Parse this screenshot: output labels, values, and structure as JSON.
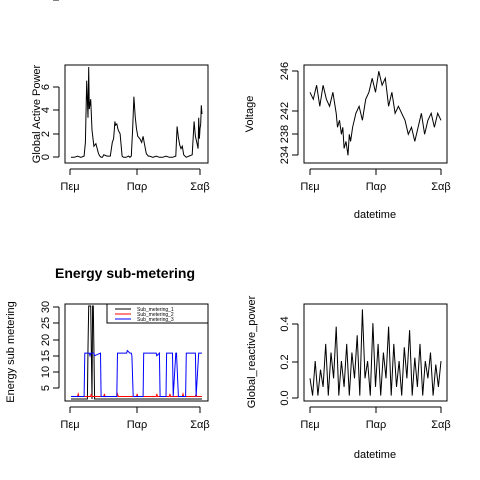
{
  "chart_data": [
    {
      "type": "line",
      "xlabel": "",
      "ylabel": "Global Active Power",
      "x_ticks": [
        "Πεμ",
        "Παρ",
        "Σαβ"
      ],
      "y_ticks": [
        "0",
        "2",
        "4",
        "6"
      ],
      "ylim": [
        0,
        7.6
      ],
      "series": [
        {
          "color": "#000000",
          "x": [
            0,
            0.05,
            0.1,
            0.15,
            0.2,
            0.22,
            0.24,
            0.26,
            0.27,
            0.28,
            0.3,
            0.32,
            0.35,
            0.38,
            0.4,
            0.42,
            0.44,
            0.46,
            0.48,
            0.5,
            0.55,
            0.6,
            0.63,
            0.65,
            0.66,
            0.67,
            0.68,
            0.7,
            0.72,
            0.75,
            0.78,
            0.8,
            0.84,
            0.88,
            0.9,
            0.92,
            0.94,
            0.96,
            0.98,
            1.0,
            1.02,
            1.05,
            1.08,
            1.1,
            1.12,
            1.15,
            1.18,
            1.2,
            1.25,
            1.3,
            1.35,
            1.4,
            1.45,
            1.5,
            1.55,
            1.6,
            1.62,
            1.64,
            1.66,
            1.68,
            1.7,
            1.72,
            1.74,
            1.76,
            1.8,
            1.85,
            1.88,
            1.9,
            1.92,
            1.94,
            1.95,
            1.96,
            1.97,
            1.98,
            1.99,
            2.0
          ],
          "y": [
            0.3,
            0.3,
            0.4,
            0.3,
            0.4,
            1.5,
            6.5,
            3.5,
            7.6,
            4.2,
            5.0,
            2.5,
            1.2,
            1.4,
            1.0,
            0.6,
            0.4,
            0.3,
            0.3,
            0.5,
            0.4,
            0.4,
            1.5,
            1.8,
            2.4,
            3.2,
            2.9,
            3.0,
            2.5,
            2.2,
            0.4,
            0.3,
            0.3,
            0.4,
            0.3,
            0.4,
            2.5,
            5.2,
            3.6,
            2.6,
            2.0,
            1.8,
            1.5,
            2.0,
            1.4,
            0.6,
            0.4,
            0.4,
            0.3,
            0.4,
            0.3,
            0.3,
            0.4,
            0.3,
            0.3,
            0.4,
            2.8,
            1.9,
            1.3,
            1.0,
            1.2,
            0.5,
            0.4,
            0.3,
            0.4,
            0.5,
            3.2,
            2.0,
            1.5,
            1.0,
            3.5,
            1.8,
            2.6,
            3.0,
            4.5,
            3.8
          ]
        }
      ]
    },
    {
      "type": "line",
      "xlabel": "datetime",
      "ylabel": "Voltage",
      "x_ticks": [
        "Πεμ",
        "Παρ",
        "Σαβ"
      ],
      "y_ticks": [
        "234",
        "238",
        "242",
        "246"
      ],
      "ylim": [
        233.2,
        246.6
      ],
      "series": [
        {
          "color": "#000000",
          "x": [
            0,
            0.05,
            0.1,
            0.15,
            0.2,
            0.25,
            0.3,
            0.35,
            0.4,
            0.42,
            0.45,
            0.48,
            0.5,
            0.52,
            0.55,
            0.58,
            0.6,
            0.62,
            0.65,
            0.7,
            0.75,
            0.8,
            0.85,
            0.9,
            0.95,
            1.0,
            1.05,
            1.1,
            1.15,
            1.2,
            1.25,
            1.3,
            1.35,
            1.4,
            1.45,
            1.5,
            1.55,
            1.6,
            1.65,
            1.7,
            1.75,
            1.8,
            1.85,
            1.9,
            1.95,
            2.0
          ],
          "y": [
            243,
            242,
            244,
            241,
            244,
            242,
            241,
            243,
            240,
            238,
            239,
            237,
            238,
            235,
            236,
            234,
            237,
            236,
            238,
            240,
            241,
            239,
            242,
            243,
            245,
            243,
            246,
            244,
            245,
            241,
            243,
            240,
            241,
            240,
            239,
            237,
            238,
            236,
            238,
            240,
            237,
            239,
            240,
            238,
            240,
            239
          ]
        }
      ]
    },
    {
      "type": "line",
      "title": "Energy sub-metering",
      "xlabel": "",
      "ylabel": "Energy sub metering",
      "x_ticks": [
        "Πεμ",
        "Παρ",
        "Σαβ"
      ],
      "y_ticks": [
        "5",
        "10",
        "15",
        "20",
        "25",
        "30",
        "35"
      ],
      "ylim": [
        0,
        36.5
      ],
      "legend": {
        "position": "top-right",
        "entries": [
          "Sub_metering_1",
          "Sub_metering_2",
          "Sub_metering_3"
        ]
      },
      "series": [
        {
          "name": "Sub_metering_1",
          "color": "#000000",
          "x": [
            0,
            0.25,
            0.26,
            0.27,
            0.3,
            0.32,
            0.33,
            0.34,
            0.36,
            0.38,
            0.5,
            1.0,
            1.5,
            2.0
          ],
          "y": [
            0,
            0,
            20,
            38,
            38,
            0,
            38,
            38,
            0,
            0,
            0,
            0,
            0,
            0
          ]
        },
        {
          "name": "Sub_metering_2",
          "color": "#ff0000",
          "x": [
            0,
            0.1,
            0.11,
            0.12,
            0.3,
            0.31,
            0.32,
            0.5,
            0.51,
            0.52,
            0.7,
            0.71,
            0.72,
            1.0,
            1.01,
            1.02,
            1.3,
            1.31,
            1.32,
            1.5,
            1.51,
            1.52,
            1.7,
            1.71,
            1.72,
            1.9,
            1.91,
            1.92,
            2.0
          ],
          "y": [
            1,
            1,
            2,
            1,
            1,
            2,
            1,
            1,
            2,
            1,
            1,
            2,
            1,
            1,
            2,
            1,
            1,
            2,
            1,
            1,
            2,
            1,
            1,
            2,
            1,
            1,
            2,
            1,
            1
          ]
        },
        {
          "name": "Sub_metering_3",
          "color": "#0000ff",
          "x": [
            0,
            0.2,
            0.21,
            0.28,
            0.29,
            0.3,
            0.31,
            0.35,
            0.36,
            0.45,
            0.46,
            0.7,
            0.71,
            0.85,
            0.86,
            0.9,
            0.92,
            0.93,
            0.95,
            1.1,
            1.11,
            1.3,
            1.31,
            1.35,
            1.36,
            1.45,
            1.46,
            1.55,
            1.56,
            1.6,
            1.61,
            1.64,
            1.65,
            1.75,
            1.76,
            1.9,
            1.91,
            1.95,
            1.96,
            2.0
          ],
          "y": [
            1,
            1,
            18,
            18,
            17,
            18,
            18,
            18,
            17,
            18,
            1,
            1,
            18,
            18,
            19,
            18,
            18,
            17,
            1,
            1,
            18,
            18,
            17,
            18,
            1,
            1,
            18,
            18,
            1,
            18,
            18,
            1,
            1,
            1,
            18,
            18,
            1,
            18,
            18,
            18
          ]
        }
      ]
    },
    {
      "type": "line",
      "xlabel": "datetime",
      "ylabel": "Global_reactive_power",
      "x_ticks": [
        "Πεμ",
        "Παρ",
        "Σαβ"
      ],
      "y_ticks": [
        "0.0",
        "0.2",
        "0.4"
      ],
      "ylim": [
        -0.02,
        0.52
      ],
      "series": [
        {
          "color": "#000000",
          "x": [
            0,
            0.04,
            0.08,
            0.12,
            0.16,
            0.2,
            0.24,
            0.28,
            0.32,
            0.36,
            0.4,
            0.44,
            0.48,
            0.52,
            0.56,
            0.6,
            0.64,
            0.68,
            0.72,
            0.76,
            0.8,
            0.84,
            0.88,
            0.92,
            0.96,
            1.0,
            1.04,
            1.08,
            1.12,
            1.16,
            1.2,
            1.24,
            1.28,
            1.32,
            1.36,
            1.4,
            1.44,
            1.48,
            1.52,
            1.56,
            1.6,
            1.64,
            1.68,
            1.72,
            1.76,
            1.8,
            1.84,
            1.88,
            1.92,
            1.96,
            2.0
          ],
          "y": [
            0.1,
            0.0,
            0.2,
            0.0,
            0.15,
            0.05,
            0.3,
            0.0,
            0.25,
            0.1,
            0.4,
            0.0,
            0.2,
            0.05,
            0.3,
            0.0,
            0.25,
            0.1,
            0.35,
            0.0,
            0.5,
            0.1,
            0.2,
            0.0,
            0.42,
            0.05,
            0.3,
            0.0,
            0.25,
            0.1,
            0.4,
            0.0,
            0.3,
            0.05,
            0.2,
            0.0,
            0.28,
            0.1,
            0.38,
            0.0,
            0.22,
            0.05,
            0.3,
            0.0,
            0.2,
            0.1,
            0.25,
            0.0,
            0.18,
            0.05,
            0.2
          ]
        }
      ]
    }
  ]
}
